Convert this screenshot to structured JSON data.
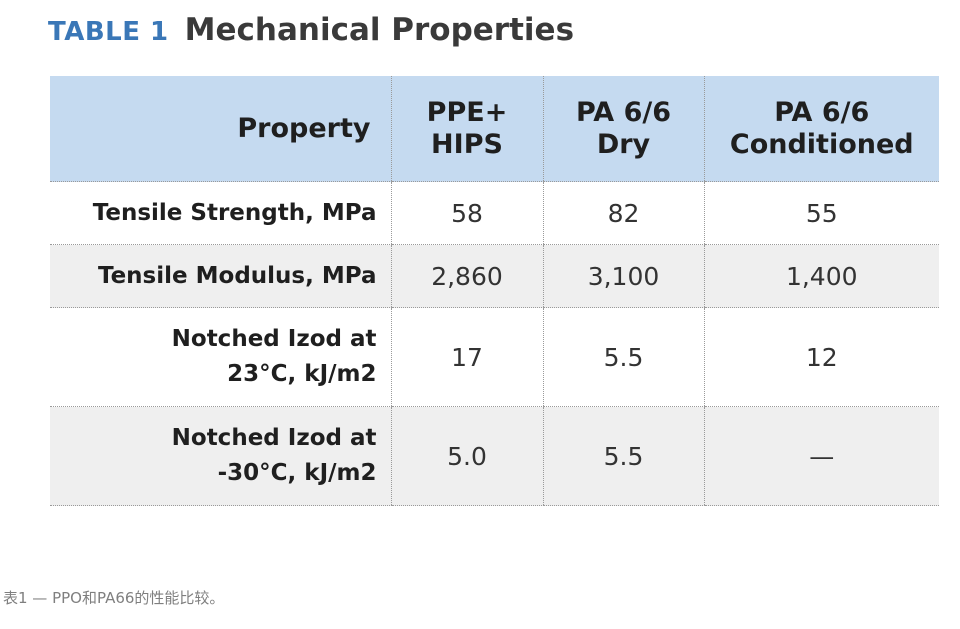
{
  "title": {
    "tag": "TABLE 1",
    "text": "Mechanical Properties"
  },
  "table": {
    "headers": [
      {
        "line1": "Property",
        "line2": ""
      },
      {
        "line1": "PPE+",
        "line2": "HIPS"
      },
      {
        "line1": "PA 6/6",
        "line2": "Dry"
      },
      {
        "line1": "PA 6/6",
        "line2": "Conditioned"
      }
    ],
    "rows": [
      {
        "label_line1": "Tensile Strength, MPa",
        "label_line2": "",
        "values": [
          "58",
          "82",
          "55"
        ]
      },
      {
        "label_line1": "Tensile Modulus, MPa",
        "label_line2": "",
        "values": [
          "2,860",
          "3,100",
          "1,400"
        ]
      },
      {
        "label_line1": "Notched Izod at",
        "label_line2": "23°C, kJ/m2",
        "values": [
          "17",
          "5.5",
          "12"
        ]
      },
      {
        "label_line1": "Notched Izod at",
        "label_line2": "-30°C, kJ/m2",
        "values": [
          "5.0",
          "5.5",
          "—"
        ]
      }
    ]
  },
  "caption": "表1 — PPO和PA66的性能比较。",
  "colors": {
    "accent": "#3a77b7",
    "header_bg": "#c5daf0",
    "alt_row_bg": "#efefef"
  }
}
